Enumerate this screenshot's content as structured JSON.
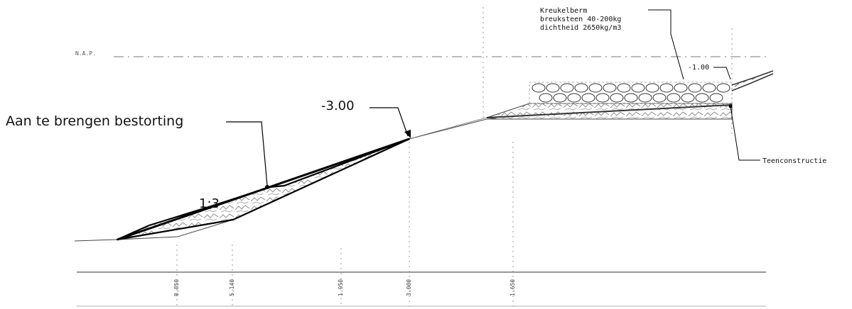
{
  "labels": {
    "nap": "N.A.P.",
    "bestorting": "Aan te brengen bestorting",
    "level_minus3": "-3.00",
    "slope": "1:3",
    "level_minus1": "-1.00",
    "berm_line1": "Kreukelberm",
    "berm_line2": "breuksteen 40-200kg",
    "berm_line3": "dichtheid 2650kg/m3",
    "teenconstructie": "Teenconstructie"
  },
  "dimensions": [
    {
      "id": "dim1",
      "text": "0.850"
    },
    {
      "id": "dim2",
      "text": "5.140"
    },
    {
      "id": "dim3",
      "text": "1.950"
    },
    {
      "id": "dim4",
      "text": "3.000"
    },
    {
      "id": "dim5",
      "text": "1.650"
    }
  ]
}
